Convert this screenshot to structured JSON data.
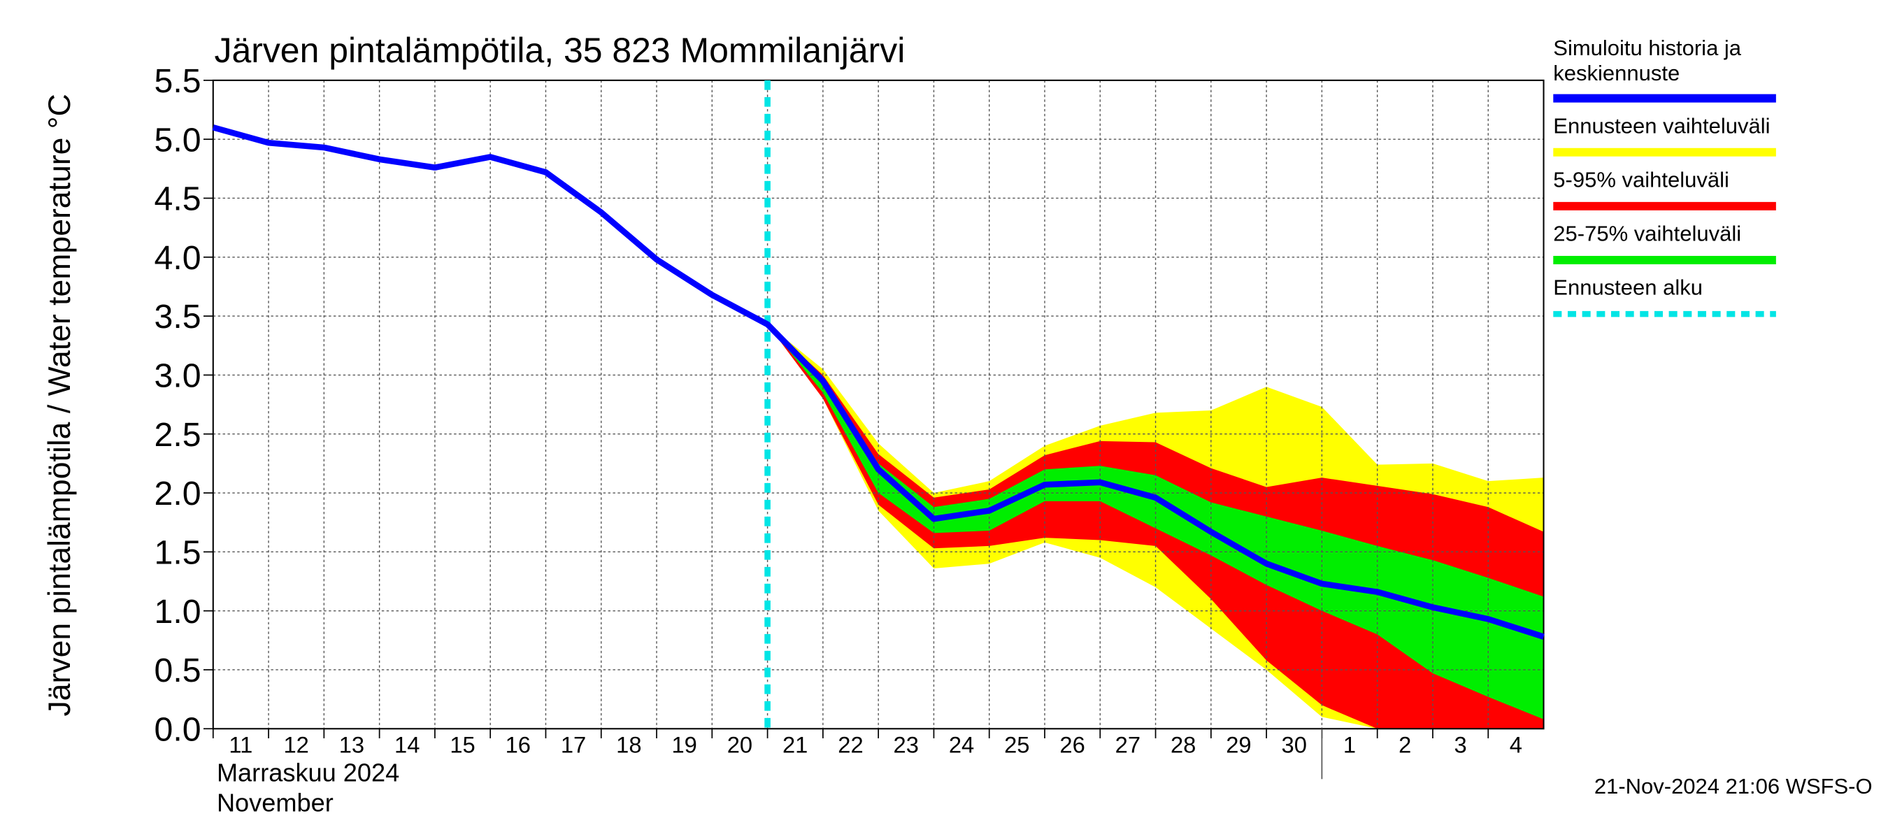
{
  "chart_data": {
    "type": "band-line",
    "title": "Järven pintalämpötila, 35 823 Mommilanjärvi",
    "y_label": "Järven pintalämpötila / Water temperature °C",
    "month_label": "Marraskuu 2024",
    "month_label_en": "November",
    "timestamp": "21-Nov-2024 21:06 WSFS-O",
    "x": [
      0,
      1,
      2,
      3,
      4,
      5,
      6,
      7,
      8,
      9,
      10,
      11,
      12,
      13,
      14,
      15,
      16,
      17,
      18,
      19,
      20,
      21,
      22,
      23,
      24
    ],
    "xlim": [
      0,
      24
    ],
    "xticks": [
      {
        "value": 0,
        "label": "11"
      },
      {
        "value": 1,
        "label": "12"
      },
      {
        "value": 2,
        "label": "13"
      },
      {
        "value": 3,
        "label": "14"
      },
      {
        "value": 4,
        "label": "15"
      },
      {
        "value": 5,
        "label": "16"
      },
      {
        "value": 6,
        "label": "17"
      },
      {
        "value": 7,
        "label": "18"
      },
      {
        "value": 8,
        "label": "19"
      },
      {
        "value": 9,
        "label": "20"
      },
      {
        "value": 10,
        "label": "21"
      },
      {
        "value": 11,
        "label": "22"
      },
      {
        "value": 12,
        "label": "23"
      },
      {
        "value": 13,
        "label": "24"
      },
      {
        "value": 14,
        "label": "25"
      },
      {
        "value": 15,
        "label": "26"
      },
      {
        "value": 16,
        "label": "27"
      },
      {
        "value": 17,
        "label": "28"
      },
      {
        "value": 18,
        "label": "29"
      },
      {
        "value": 19,
        "label": "30"
      },
      {
        "value": 20,
        "label": "1"
      },
      {
        "value": 21,
        "label": "2"
      },
      {
        "value": 22,
        "label": "3"
      },
      {
        "value": 23,
        "label": "4"
      }
    ],
    "month_divider_x": 20,
    "ylim": [
      0,
      5.5
    ],
    "yticks": [
      {
        "value": 0,
        "label": "0.0"
      },
      0.5,
      {
        "value": 1,
        "label": "1.0"
      },
      1.5,
      {
        "value": 2,
        "label": "2.0"
      },
      2.5,
      {
        "value": 3,
        "label": "3.0"
      },
      3.5,
      {
        "value": 4,
        "label": "4.0"
      },
      4.5,
      {
        "value": 5,
        "label": "5.0"
      },
      5.5
    ],
    "grid": true,
    "bands": [
      {
        "name": "Ennusteen vaihteluväli",
        "color": "#ffff00",
        "upper": [
          null,
          null,
          null,
          null,
          null,
          null,
          null,
          null,
          null,
          null,
          3.43,
          3.05,
          2.42,
          2.0,
          2.1,
          2.4,
          2.57,
          2.68,
          2.7,
          2.9,
          2.73,
          2.24,
          2.25,
          2.1,
          2.13
        ],
        "lower": [
          null,
          null,
          null,
          null,
          null,
          null,
          null,
          null,
          null,
          null,
          3.43,
          2.8,
          1.85,
          1.36,
          1.4,
          1.58,
          1.45,
          1.2,
          0.85,
          0.5,
          0.1,
          0,
          0,
          0,
          0
        ]
      },
      {
        "name": "5-95% vaihteluväli",
        "color": "#ff0000",
        "upper": [
          null,
          null,
          null,
          null,
          null,
          null,
          null,
          null,
          null,
          null,
          3.43,
          3.0,
          2.33,
          1.96,
          2.03,
          2.32,
          2.44,
          2.43,
          2.21,
          2.05,
          2.13,
          2.06,
          1.99,
          1.88,
          1.67
        ],
        "lower": [
          null,
          null,
          null,
          null,
          null,
          null,
          null,
          null,
          null,
          null,
          3.43,
          2.8,
          1.9,
          1.53,
          1.55,
          1.62,
          1.6,
          1.55,
          1.1,
          0.58,
          0.2,
          0,
          0,
          0,
          0
        ]
      },
      {
        "name": "25-75% vaihteluväli",
        "color": "#00ee00",
        "upper": [
          null,
          null,
          null,
          null,
          null,
          null,
          null,
          null,
          null,
          null,
          3.43,
          2.98,
          2.25,
          1.88,
          1.95,
          2.2,
          2.23,
          2.15,
          1.92,
          1.8,
          1.68,
          1.55,
          1.43,
          1.28,
          1.12
        ],
        "lower": [
          null,
          null,
          null,
          null,
          null,
          null,
          null,
          null,
          null,
          null,
          3.43,
          2.85,
          2.0,
          1.66,
          1.68,
          1.93,
          1.93,
          1.7,
          1.47,
          1.22,
          1.0,
          0.8,
          0.47,
          0.27,
          0.08
        ]
      }
    ],
    "series": [
      {
        "name": "Simuloitu historia ja keskiennuste",
        "color": "#0000ff",
        "values": [
          5.1,
          4.97,
          4.93,
          4.83,
          4.76,
          4.85,
          4.72,
          4.38,
          3.98,
          3.68,
          3.43,
          2.95,
          2.2,
          1.78,
          1.85,
          2.07,
          2.09,
          1.96,
          1.67,
          1.4,
          1.23,
          1.16,
          1.03,
          0.93,
          0.78
        ]
      }
    ],
    "forecast_start": {
      "name": "Ennusteen alku",
      "x": 10,
      "color": "#00e5e5"
    }
  }
}
